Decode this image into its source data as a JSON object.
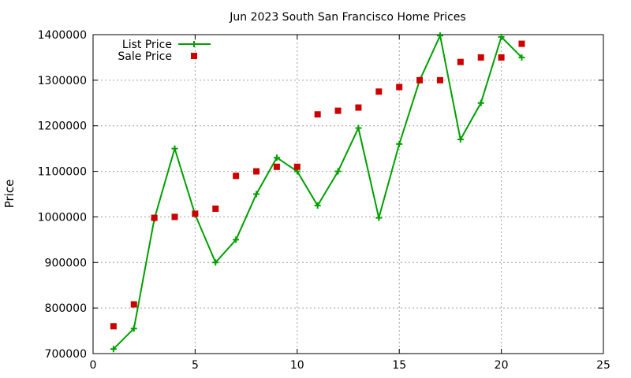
{
  "chart_data": {
    "type": "line",
    "title": "Jun 2023 South San Francisco Home Prices",
    "xlabel": "",
    "ylabel": "Price",
    "xlim": [
      0,
      25
    ],
    "ylim": [
      700000,
      1400000
    ],
    "xticks": [
      0,
      5,
      10,
      15,
      20,
      25
    ],
    "yticks": [
      700000,
      800000,
      900000,
      1000000,
      1100000,
      1200000,
      1300000,
      1400000
    ],
    "grid": true,
    "legend_position": "top-left",
    "series": [
      {
        "name": "List Price",
        "style": "line+cross",
        "color": "#00a000",
        "x": [
          1,
          2,
          3,
          4,
          5,
          6,
          7,
          8,
          9,
          10,
          11,
          12,
          13,
          14,
          15,
          16,
          17,
          18,
          19,
          20,
          21
        ],
        "y": [
          710000,
          755000,
          995000,
          1150000,
          1005000,
          900000,
          950000,
          1050000,
          1130000,
          1100000,
          1025000,
          1100000,
          1195000,
          998000,
          1160000,
          1300000,
          1398000,
          1170000,
          1250000,
          1395000,
          1350000
        ]
      },
      {
        "name": "Sale Price",
        "style": "square",
        "color": "#cc0000",
        "x": [
          1,
          2,
          3,
          4,
          5,
          6,
          7,
          8,
          9,
          10,
          11,
          12,
          13,
          14,
          15,
          16,
          17,
          18,
          19,
          20,
          21
        ],
        "y": [
          760000,
          808000,
          998000,
          1000000,
          1007000,
          1018000,
          1090000,
          1100000,
          1110000,
          1110000,
          1225000,
          1233000,
          1240000,
          1275000,
          1285000,
          1300000,
          1300000,
          1340000,
          1350000,
          1350000,
          1380000
        ]
      }
    ]
  }
}
